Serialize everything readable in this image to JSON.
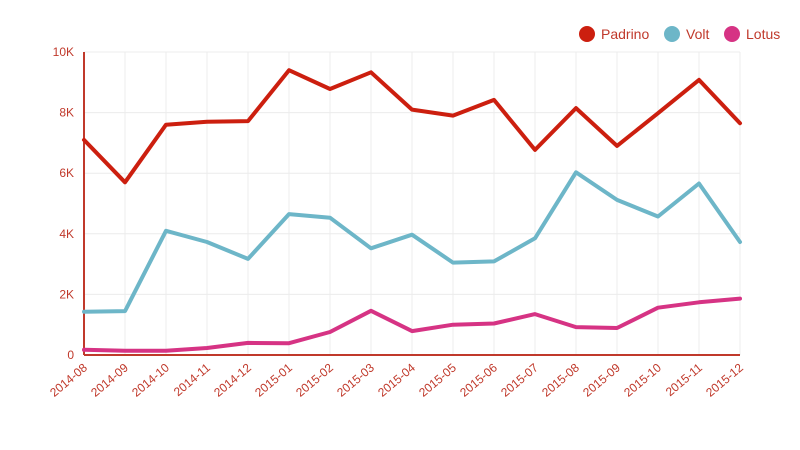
{
  "chart_data": {
    "type": "line",
    "title": "",
    "xlabel": "",
    "ylabel": "",
    "ylim": [
      0,
      10000
    ],
    "y_ticks": [
      {
        "value": 0,
        "label": "0"
      },
      {
        "value": 2000,
        "label": "2K"
      },
      {
        "value": 4000,
        "label": "4K"
      },
      {
        "value": 6000,
        "label": "6K"
      },
      {
        "value": 8000,
        "label": "8K"
      },
      {
        "value": 10000,
        "label": "10K"
      }
    ],
    "categories": [
      "2014-08",
      "2014-09",
      "2014-10",
      "2014-11",
      "2014-12",
      "2015-01",
      "2015-02",
      "2015-03",
      "2015-04",
      "2015-05",
      "2015-06",
      "2015-07",
      "2015-08",
      "2015-09",
      "2015-10",
      "2015-11",
      "2015-12"
    ],
    "grid": true,
    "legend_position": "top-right",
    "series": [
      {
        "name": "Padrino",
        "color": "#cc1f0f",
        "values": [
          7100,
          5700,
          7600,
          7700,
          7720,
          9400,
          8780,
          9330,
          8100,
          7900,
          8420,
          6770,
          8150,
          6900,
          7980,
          9080,
          7650
        ]
      },
      {
        "name": "Volt",
        "color": "#6db6c8",
        "values": [
          1430,
          1450,
          4100,
          3730,
          3170,
          4650,
          4530,
          3520,
          3970,
          3050,
          3090,
          3850,
          6030,
          5120,
          4570,
          5660,
          3730
        ]
      },
      {
        "name": "Lotus",
        "color": "#d63384",
        "values": [
          170,
          140,
          140,
          230,
          400,
          390,
          760,
          1460,
          790,
          1000,
          1040,
          1350,
          920,
          890,
          1560,
          1740,
          1860
        ]
      }
    ]
  }
}
